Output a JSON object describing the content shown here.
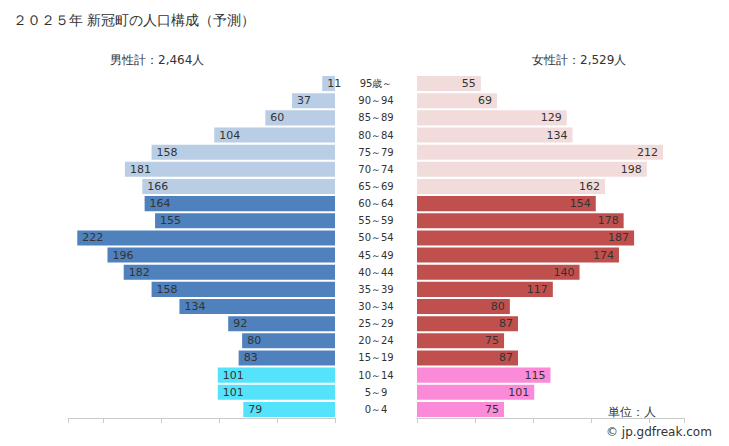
{
  "chart_data": {
    "type": "bar",
    "orientation": "horizontal",
    "title": "２０２５年 新冠町の人口構成（予測）",
    "unit": "単位：人",
    "source": "© jp.gdfreak.com",
    "categories": [
      "0～4",
      "5～9",
      "10～14",
      "15～19",
      "20～24",
      "25～29",
      "30～34",
      "35～39",
      "40～44",
      "45～49",
      "50～54",
      "55～59",
      "60～64",
      "65～69",
      "70～74",
      "75～79",
      "80～84",
      "85～89",
      "90～94",
      "95歳～"
    ],
    "series": [
      {
        "name": "男性計：2,464人",
        "values": [
          79,
          101,
          101,
          83,
          80,
          92,
          134,
          158,
          182,
          196,
          222,
          155,
          164,
          166,
          181,
          158,
          104,
          60,
          37,
          11
        ],
        "colors": [
          "#55e3fc",
          "#55e3fc",
          "#55e3fc",
          "#4f81bd",
          "#4f81bd",
          "#4f81bd",
          "#4f81bd",
          "#4f81bd",
          "#4f81bd",
          "#4f81bd",
          "#4f81bd",
          "#4f81bd",
          "#4f81bd",
          "#b9cde5",
          "#b9cde5",
          "#b9cde5",
          "#b9cde5",
          "#b9cde5",
          "#b9cde5",
          "#b9cde5"
        ]
      },
      {
        "name": "女性計：2,529人",
        "values": [
          75,
          101,
          115,
          87,
          75,
          87,
          80,
          117,
          140,
          174,
          187,
          178,
          154,
          162,
          198,
          212,
          134,
          129,
          69,
          55
        ],
        "colors": [
          "#fb8ad8",
          "#fb8ad8",
          "#fb8ad8",
          "#c0504d",
          "#c0504d",
          "#c0504d",
          "#c0504d",
          "#c0504d",
          "#c0504d",
          "#c0504d",
          "#c0504d",
          "#c0504d",
          "#c0504d",
          "#f2dcdb",
          "#f2dcdb",
          "#f2dcdb",
          "#f2dcdb",
          "#f2dcdb",
          "#f2dcdb",
          "#f2dcdb"
        ]
      }
    ],
    "xlim": [
      0,
      230
    ],
    "xticks": [
      0,
      50,
      100,
      150,
      200
    ],
    "data_labels": true,
    "tick_labels": "y",
    "grid": false
  }
}
